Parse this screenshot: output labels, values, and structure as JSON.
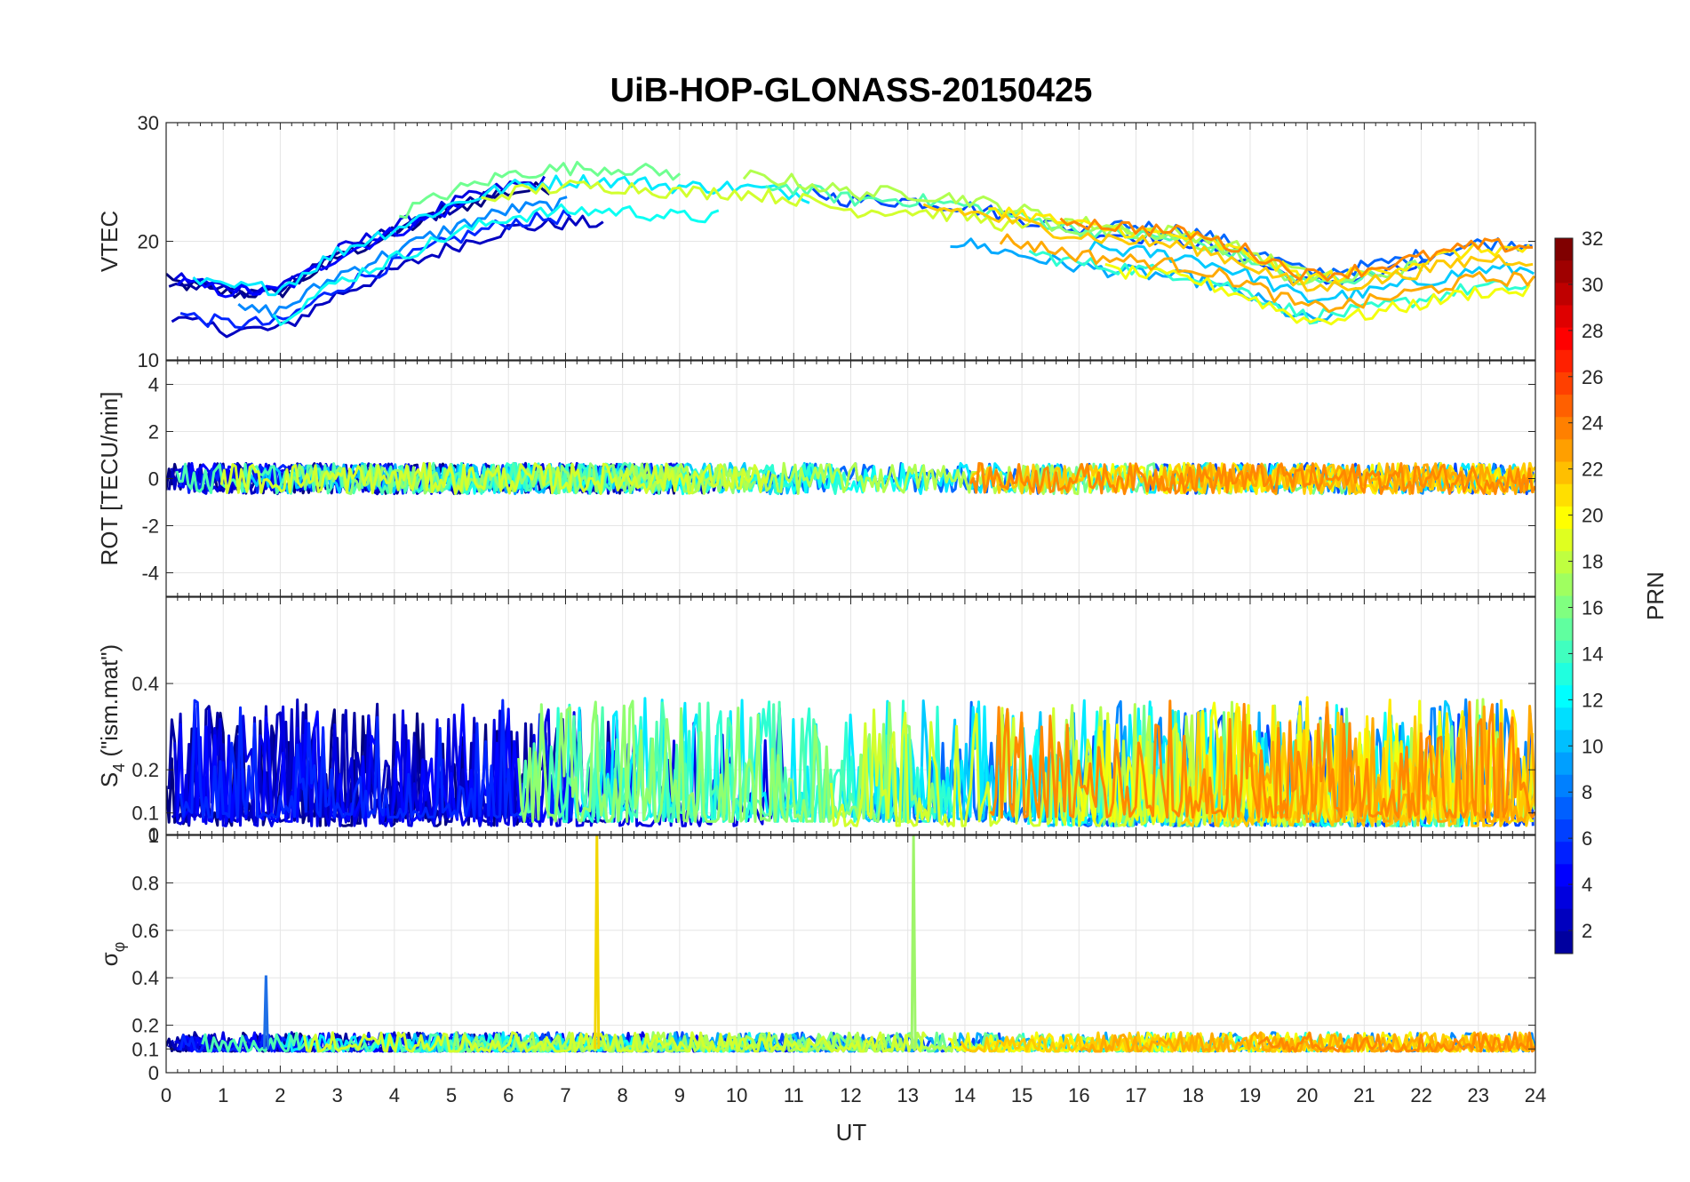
{
  "chart_data": {
    "type": "line",
    "title": "UiB-HOP-GLONASS-20150425",
    "xlabel": "UT",
    "xlim": [
      0,
      24
    ],
    "xticks": [
      "0",
      "1",
      "2",
      "3",
      "4",
      "5",
      "6",
      "7",
      "8",
      "9",
      "10",
      "11",
      "12",
      "13",
      "14",
      "15",
      "16",
      "17",
      "18",
      "19",
      "20",
      "21",
      "22",
      "23",
      "24"
    ],
    "grid": true,
    "panels": [
      {
        "ylabel": "VTEC",
        "ylim": [
          10,
          30
        ],
        "yticks": [
          "10",
          "20",
          "30"
        ],
        "approximate_profile": {
          "x": [
            0,
            1,
            2,
            3,
            4,
            5,
            6,
            7,
            8,
            9,
            10,
            11,
            12,
            13,
            14,
            15,
            16,
            17,
            18,
            19,
            20,
            21,
            22,
            23,
            24
          ],
          "y": [
            16,
            15,
            15,
            18,
            20,
            22,
            23.5,
            24,
            24,
            23.5,
            23.5,
            23,
            22,
            22,
            21.5,
            20.5,
            19.5,
            19,
            18.5,
            17,
            15,
            15.5,
            16.5,
            17.5,
            17.5
          ]
        }
      },
      {
        "ylabel": "ROT [TECU/min]",
        "ylim": [
          -5,
          5
        ],
        "yticks": [
          "-4",
          "-2",
          "0",
          "2",
          "4"
        ],
        "approximate_profile": {
          "x": [
            0,
            6,
            12,
            18,
            24
          ],
          "y": [
            0,
            0,
            0,
            0,
            0
          ]
        }
      },
      {
        "ylabel": "S4 (\"ism.mat\")",
        "ylabel_main": "S",
        "ylabel_sub": "4",
        "ylabel_rest": " (\"ism.mat\")",
        "ylim": [
          0.05,
          0.6
        ],
        "yticks": [
          "0.1",
          "0.2",
          "0.4"
        ],
        "bottom_tick": "0",
        "approximate_profile": {
          "x": [
            0,
            3,
            6,
            9,
            12,
            15,
            18,
            21,
            24
          ],
          "y": [
            0.1,
            0.12,
            0.1,
            0.1,
            0.1,
            0.12,
            0.1,
            0.1,
            0.1
          ]
        }
      },
      {
        "ylabel": "σ_φ",
        "ylabel_main": "σ",
        "ylabel_sub": "φ",
        "ylim": [
          0,
          1
        ],
        "yticks": [
          "0",
          "0.1",
          "0.2",
          "0.4",
          "0.6",
          "0.8",
          "1"
        ],
        "approximate_profile": {
          "x": [
            0,
            6,
            12,
            18,
            24
          ],
          "y": [
            0.12,
            0.12,
            0.12,
            0.12,
            0.12
          ]
        },
        "spikes": [
          {
            "x": 7.55,
            "y": 1.0
          },
          {
            "x": 13.1,
            "y": 1.0
          },
          {
            "x": 1.75,
            "y": 0.41
          }
        ]
      }
    ],
    "colorbar": {
      "label": "PRN",
      "range": [
        1,
        32
      ],
      "ticks": [
        "2",
        "4",
        "6",
        "8",
        "10",
        "12",
        "14",
        "16",
        "18",
        "20",
        "22",
        "24",
        "26",
        "28",
        "30",
        "32"
      ],
      "colormap": "jet"
    },
    "series_prn": [
      1,
      2,
      3,
      4,
      5,
      6,
      7,
      8,
      9,
      10,
      11,
      12,
      13,
      14,
      15,
      16,
      17,
      18,
      19,
      20,
      21,
      22,
      23,
      24
    ]
  }
}
